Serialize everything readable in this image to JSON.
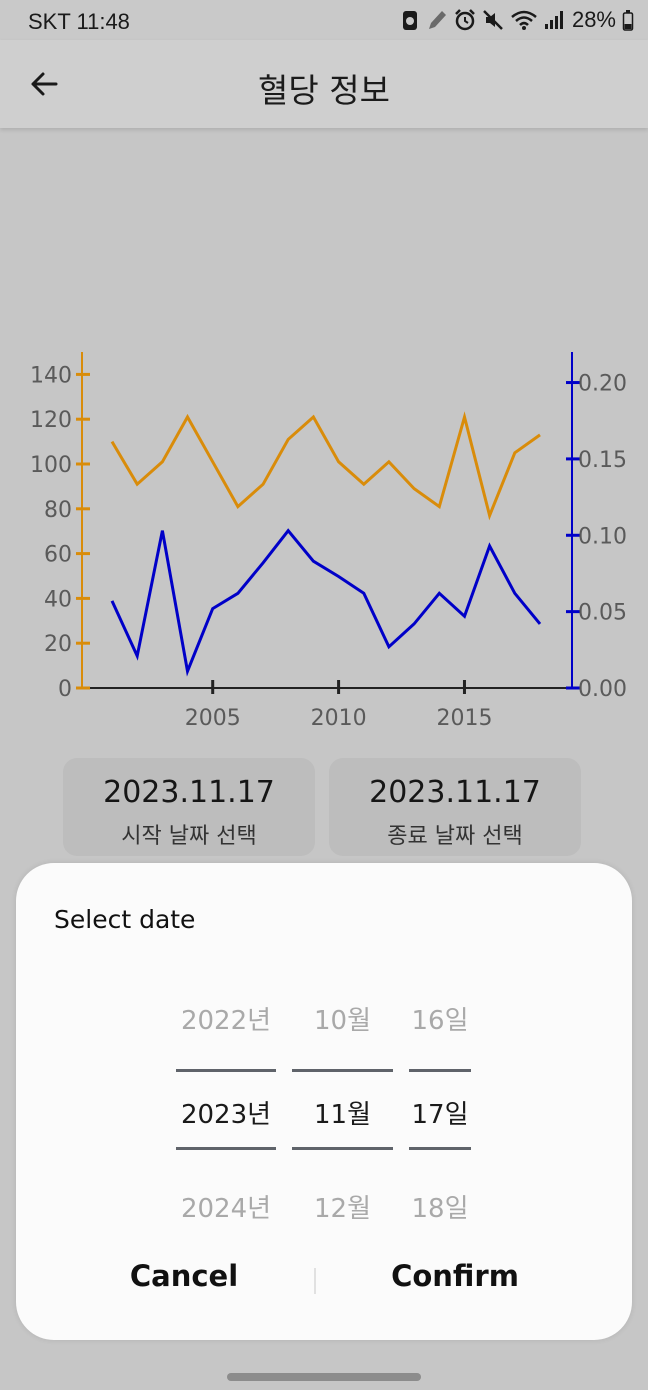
{
  "status_bar": {
    "carrier_time": "SKT 11:48",
    "battery": "28%",
    "icons": [
      "recycle-icon",
      "pen-icon",
      "alarm-icon",
      "mute-icon",
      "wifi-icon",
      "signal-icon",
      "battery-icon"
    ]
  },
  "app_bar": {
    "back_icon": "arrow-left-icon",
    "title": "혈당 정보"
  },
  "chart_data": {
    "type": "line",
    "x": [
      2001,
      2002,
      2003,
      2004,
      2005,
      2006,
      2007,
      2008,
      2009,
      2010,
      2011,
      2012,
      2013,
      2014,
      2015,
      2016,
      2017,
      2018
    ],
    "x_ticks": [
      "2005",
      "2010",
      "2015"
    ],
    "y_left": {
      "ticks": [
        "0",
        "20",
        "40",
        "60",
        "80",
        "100",
        "120",
        "140"
      ],
      "range": [
        0,
        150
      ],
      "color": "#d98c0a"
    },
    "y_right": {
      "ticks": [
        "0.00",
        "0.05",
        "0.10",
        "0.15",
        "0.20"
      ],
      "range": [
        0,
        0.22
      ],
      "color": "#0000c8"
    },
    "series": [
      {
        "axis": "left",
        "color": "#d98c0a",
        "values": [
          110,
          91,
          101,
          121,
          101,
          81,
          91,
          111,
          121,
          101,
          91,
          101,
          89,
          81,
          121,
          77,
          105,
          113
        ]
      },
      {
        "axis": "right",
        "color": "#0000c8",
        "values": [
          0.057,
          0.021,
          0.103,
          0.011,
          0.052,
          0.062,
          0.082,
          0.103,
          0.083,
          0.073,
          0.062,
          0.027,
          0.042,
          0.062,
          0.047,
          0.093,
          0.062,
          0.042
        ]
      }
    ],
    "grid": false
  },
  "date_buttons": {
    "start": {
      "date": "2023.11.17",
      "caption": "시작 날짜 선택"
    },
    "end": {
      "date": "2023.11.17",
      "caption": "종료 날짜 선택"
    }
  },
  "dialog": {
    "title": "Select date",
    "year": {
      "prev": "2022년",
      "selected": "2023년",
      "next": "2024년"
    },
    "month": {
      "prev": "10월",
      "selected": "11월",
      "next": "12월"
    },
    "day": {
      "prev": "16일",
      "selected": "17일",
      "next": "18일"
    },
    "cancel_label": "Cancel",
    "confirm_label": "Confirm"
  }
}
